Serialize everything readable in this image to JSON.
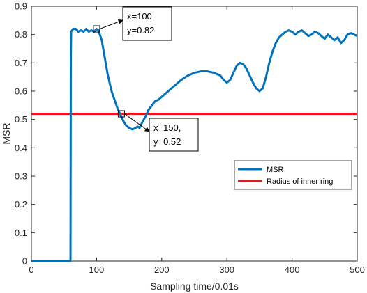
{
  "chart_data": {
    "type": "line",
    "title": "",
    "xlabel": "Sampling time/0.01s",
    "ylabel": "MSR",
    "xlim": [
      0,
      500
    ],
    "ylim": [
      0,
      0.9
    ],
    "x_ticks": [
      0,
      100,
      200,
      300,
      400,
      500
    ],
    "y_ticks": [
      0,
      0.1,
      0.2,
      0.3,
      0.4,
      0.5,
      0.6,
      0.7,
      0.8,
      0.9
    ],
    "x_tick_labels": [
      "0",
      "100",
      "200",
      "300",
      "400",
      "500"
    ],
    "y_tick_labels": [
      "0",
      "0.1",
      "0.2",
      "0.3",
      "0.4",
      "0.5",
      "0.6",
      "0.7",
      "0.8",
      "0.9"
    ],
    "grid": false,
    "legend_position": "center-right",
    "series": [
      {
        "name": "MSR",
        "color": "#0072BD",
        "x": [
          0,
          60,
          60.5,
          61,
          64,
          68,
          72,
          76,
          80,
          84,
          88,
          92,
          96,
          100,
          103,
          105,
          108,
          111,
          114,
          117,
          120,
          123,
          126,
          129,
          132,
          135,
          138,
          141,
          145,
          150,
          155,
          160,
          163,
          166,
          170,
          175,
          180,
          185,
          190,
          195,
          200,
          210,
          220,
          230,
          240,
          250,
          260,
          270,
          280,
          290,
          295,
          300,
          305,
          310,
          315,
          320,
          325,
          330,
          335,
          340,
          345,
          350,
          355,
          360,
          365,
          370,
          375,
          380,
          385,
          390,
          395,
          400,
          405,
          410,
          415,
          420,
          425,
          430,
          435,
          440,
          445,
          450,
          455,
          460,
          465,
          470,
          475,
          480,
          485,
          490,
          495,
          500
        ],
        "y": [
          0,
          0,
          0.72,
          0.81,
          0.82,
          0.82,
          0.81,
          0.815,
          0.81,
          0.82,
          0.81,
          0.815,
          0.81,
          0.82,
          0.815,
          0.8,
          0.78,
          0.74,
          0.7,
          0.66,
          0.63,
          0.6,
          0.58,
          0.56,
          0.54,
          0.525,
          0.51,
          0.495,
          0.48,
          0.47,
          0.465,
          0.47,
          0.475,
          0.47,
          0.49,
          0.51,
          0.535,
          0.55,
          0.565,
          0.57,
          0.58,
          0.6,
          0.62,
          0.64,
          0.655,
          0.665,
          0.67,
          0.67,
          0.665,
          0.655,
          0.64,
          0.63,
          0.64,
          0.665,
          0.69,
          0.7,
          0.695,
          0.68,
          0.655,
          0.63,
          0.61,
          0.6,
          0.61,
          0.65,
          0.7,
          0.74,
          0.77,
          0.79,
          0.8,
          0.81,
          0.815,
          0.81,
          0.8,
          0.81,
          0.815,
          0.805,
          0.795,
          0.8,
          0.81,
          0.805,
          0.795,
          0.785,
          0.8,
          0.79,
          0.78,
          0.79,
          0.77,
          0.78,
          0.8,
          0.805,
          0.8,
          0.795
        ]
      },
      {
        "name": "Radius of inner ring",
        "color": "#E8171F",
        "x": [
          0,
          500
        ],
        "y": [
          0.52,
          0.52
        ]
      }
    ],
    "annotations": [
      {
        "line1": "x=100,",
        "line2": "y=0.82",
        "x": 100,
        "y": 0.82
      },
      {
        "line1": "x=150,",
        "line2": "y=0.52",
        "x": 138,
        "y": 0.52
      }
    ]
  }
}
